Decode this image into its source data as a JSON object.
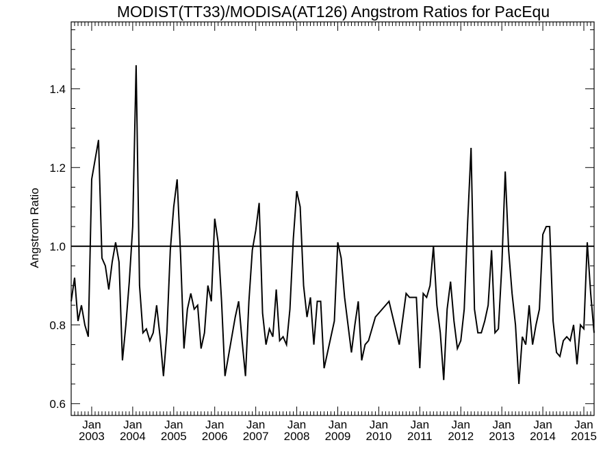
{
  "chart_data": {
    "type": "line",
    "title": "MODIST(TT33)/MODISA(AT126)  Angstrom Ratios for PacEqu",
    "xlabel": "",
    "ylabel": "Angstrom Ratio",
    "xlim": [
      "2002-07",
      "2015-04"
    ],
    "ylim": [
      0.57,
      1.57
    ],
    "y_ticks": [
      "0.6",
      "0.8",
      "1.0",
      "1.2",
      "1.4"
    ],
    "x_ticks": [
      {
        "month": "Jan",
        "year": "2003",
        "date": "2003-01"
      },
      {
        "month": "Jan",
        "year": "2004",
        "date": "2004-01"
      },
      {
        "month": "Jan",
        "year": "2005",
        "date": "2005-01"
      },
      {
        "month": "Jan",
        "year": "2006",
        "date": "2006-01"
      },
      {
        "month": "Jan",
        "year": "2007",
        "date": "2007-01"
      },
      {
        "month": "Jan",
        "year": "2008",
        "date": "2008-01"
      },
      {
        "month": "Jan",
        "year": "2009",
        "date": "2009-01"
      },
      {
        "month": "Jan",
        "year": "2010",
        "date": "2010-01"
      },
      {
        "month": "Jan",
        "year": "2011",
        "date": "2011-01"
      },
      {
        "month": "Jan",
        "year": "2012",
        "date": "2012-01"
      },
      {
        "month": "Jan",
        "year": "2013",
        "date": "2013-01"
      },
      {
        "month": "Jan",
        "year": "2014",
        "date": "2014-01"
      },
      {
        "month": "Jan",
        "year": "2015",
        "date": "2015-01"
      }
    ],
    "reference_line": 1.0,
    "grid": false,
    "series": [
      {
        "x": [
          "2002-07",
          "2002-08",
          "2002-09",
          "2002-10",
          "2002-11",
          "2002-12",
          "2003-01",
          "2003-02",
          "2003-03",
          "2003-04",
          "2003-05",
          "2003-06",
          "2003-07",
          "2003-08",
          "2003-09",
          "2003-10",
          "2003-11",
          "2003-12",
          "2004-01",
          "2004-02",
          "2004-03",
          "2004-04",
          "2004-05",
          "2004-06",
          "2004-07",
          "2004-08",
          "2004-09",
          "2004-10",
          "2004-11",
          "2004-12",
          "2005-01",
          "2005-02",
          "2005-03",
          "2005-04",
          "2005-05",
          "2005-06",
          "2005-07",
          "2005-08",
          "2005-09",
          "2005-10",
          "2005-11",
          "2005-12",
          "2006-01",
          "2006-02",
          "2006-03",
          "2006-04",
          "2006-05",
          "2006-06",
          "2006-07",
          "2006-08",
          "2006-09",
          "2006-10",
          "2006-11",
          "2006-12",
          "2007-01",
          "2007-02",
          "2007-03",
          "2007-04",
          "2007-05",
          "2007-06",
          "2007-07",
          "2007-08",
          "2007-09",
          "2007-10",
          "2007-11",
          "2007-12",
          "2008-01",
          "2008-02",
          "2008-03",
          "2008-04",
          "2008-05",
          "2008-06",
          "2008-07",
          "2008-08",
          "2008-09",
          "2008-10",
          "2008-11",
          "2008-12",
          "2009-01",
          "2009-02",
          "2009-03",
          "2009-04",
          "2009-05",
          "2009-06",
          "2009-07",
          "2009-08",
          "2009-09",
          "2009-10",
          "2009-11",
          "2009-12",
          "2010-01",
          "2010-04",
          "2010-07",
          "2010-09",
          "2010-10",
          "2010-12",
          "2011-01",
          "2011-02",
          "2011-03",
          "2011-04",
          "2011-05",
          "2011-06",
          "2011-07",
          "2011-08",
          "2011-09",
          "2011-10",
          "2011-11",
          "2011-12",
          "2012-01",
          "2012-02",
          "2012-03",
          "2012-04",
          "2012-05",
          "2012-06",
          "2012-07",
          "2012-08",
          "2012-09",
          "2012-10",
          "2012-11",
          "2012-12",
          "2013-01",
          "2013-02",
          "2013-03",
          "2013-04",
          "2013-05",
          "2013-06",
          "2013-07",
          "2013-08",
          "2013-09",
          "2013-10",
          "2013-11",
          "2013-12",
          "2014-01",
          "2014-02",
          "2014-03",
          "2014-04",
          "2014-05",
          "2014-06",
          "2014-07",
          "2014-08",
          "2014-09",
          "2014-10",
          "2014-11",
          "2014-12",
          "2015-01",
          "2015-02",
          "2015-03",
          "2015-04"
        ],
        "y": [
          0.86,
          0.92,
          0.81,
          0.85,
          0.8,
          0.77,
          1.17,
          1.22,
          1.27,
          0.97,
          0.95,
          0.89,
          0.96,
          1.01,
          0.96,
          0.71,
          0.8,
          0.91,
          1.05,
          1.46,
          0.9,
          0.78,
          0.79,
          0.76,
          0.78,
          0.85,
          0.77,
          0.67,
          0.78,
          0.99,
          1.1,
          1.17,
          0.98,
          0.74,
          0.84,
          0.88,
          0.84,
          0.85,
          0.74,
          0.78,
          0.9,
          0.86,
          1.07,
          1.01,
          0.86,
          0.67,
          0.72,
          0.77,
          0.82,
          0.86,
          0.76,
          0.67,
          0.86,
          0.99,
          1.04,
          1.11,
          0.83,
          0.75,
          0.79,
          0.77,
          0.89,
          0.76,
          0.77,
          0.75,
          0.84,
          1.02,
          1.14,
          1.1,
          0.9,
          0.82,
          0.87,
          0.75,
          0.86,
          0.86,
          0.69,
          0.73,
          0.77,
          0.81,
          1.01,
          0.97,
          0.87,
          0.8,
          0.73,
          0.8,
          0.86,
          0.71,
          0.75,
          0.76,
          0.79,
          0.82,
          0.83,
          0.86,
          0.75,
          0.88,
          0.87,
          0.87,
          0.69,
          0.88,
          0.87,
          0.9,
          1.0,
          0.85,
          0.78,
          0.66,
          0.84,
          0.91,
          0.81,
          0.74,
          0.76,
          0.84,
          1.06,
          1.25,
          0.84,
          0.78,
          0.78,
          0.81,
          0.85,
          0.99,
          0.78,
          0.79,
          0.95,
          1.19,
          0.99,
          0.88,
          0.8,
          0.65,
          0.77,
          0.75,
          0.85,
          0.75,
          0.8,
          0.84,
          1.03,
          1.05,
          1.05,
          0.81,
          0.73,
          0.72,
          0.76,
          0.77,
          0.76,
          0.8,
          0.7,
          0.8,
          0.79,
          1.01,
          0.88,
          0.78
        ]
      }
    ]
  }
}
